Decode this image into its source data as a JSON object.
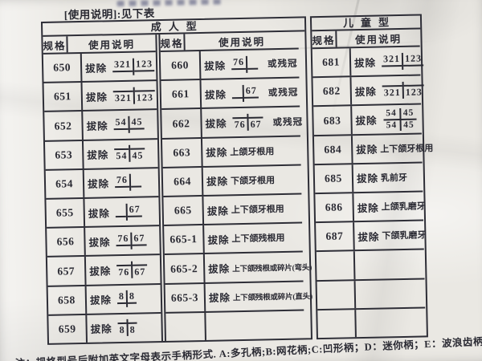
{
  "top_note": "[使用说明]:见下表",
  "bottom_note": "注：规格型号后附加英文字母表示手柄形式. A:多孔柄;B:网花柄;C:凹形柄；D：迷你柄；E：波浪齿柄",
  "colors": {
    "ink": "#2a2a33",
    "table_line": "#2e2e37",
    "paper": "#eae8e3"
  },
  "notation_legend": {
    "upper": "line below numbers = maxillary teeth",
    "lower": "line above numbers = mandibular teeth",
    "both": "numbers above and below line = both jaws"
  },
  "groups": [
    {
      "label": "成人型",
      "sections": [
        {
          "spec_header": "规格",
          "usage_header": "使用说明",
          "rows": [
            {
              "spec": "650",
              "prefix": "拔除",
              "notation": {
                "kind": "upper",
                "l": "321",
                "r": "123"
              }
            },
            {
              "spec": "651",
              "prefix": "拔除",
              "notation": {
                "kind": "lower",
                "l": "321",
                "r": "123"
              }
            },
            {
              "spec": "652",
              "prefix": "拔除",
              "notation": {
                "kind": "upper",
                "l": "54",
                "r": "45"
              }
            },
            {
              "spec": "653",
              "prefix": "拔除",
              "notation": {
                "kind": "lower",
                "l": "54",
                "r": "45"
              }
            },
            {
              "spec": "654",
              "prefix": "拔除",
              "notation": {
                "kind": "upper",
                "l": "76",
                "r": ""
              }
            },
            {
              "spec": "655",
              "prefix": "拔除",
              "notation": {
                "kind": "upper",
                "l": "",
                "r": "67"
              }
            },
            {
              "spec": "656",
              "prefix": "拔除",
              "notation": {
                "kind": "upper",
                "l": "76",
                "r": "67"
              }
            },
            {
              "spec": "657",
              "prefix": "拔除",
              "notation": {
                "kind": "lower",
                "l": "76",
                "r": "67"
              }
            },
            {
              "spec": "658",
              "prefix": "拔除",
              "notation": {
                "kind": "upper",
                "l": "8",
                "r": "8"
              }
            },
            {
              "spec": "659",
              "prefix": "拔除",
              "notation": {
                "kind": "lower",
                "l": "8",
                "r": "8"
              }
            }
          ]
        },
        {
          "spec_header": "规格",
          "usage_header": "使用说明",
          "rows": [
            {
              "spec": "660",
              "prefix": "拔除",
              "notation": {
                "kind": "upper",
                "l": "76",
                "r": ""
              },
              "suffix": "或残冠"
            },
            {
              "spec": "661",
              "prefix": "拔除",
              "notation": {
                "kind": "upper",
                "l": "",
                "r": "67"
              },
              "suffix": "或残冠"
            },
            {
              "spec": "662",
              "prefix": "拔除",
              "notation": {
                "kind": "lower",
                "l": "76",
                "r": "67"
              },
              "suffix": "或残冠"
            },
            {
              "spec": "663",
              "prefix": "拔除",
              "text": "上颌牙根用"
            },
            {
              "spec": "664",
              "prefix": "拔除",
              "text": "下颌牙根用"
            },
            {
              "spec": "665",
              "prefix": "拔除",
              "text": "上下颌牙根用"
            },
            {
              "spec": "665-1",
              "prefix": "拔除",
              "text": "上下颌残根用"
            },
            {
              "spec": "665-2",
              "prefix": "拔除",
              "text": "上下颌残根或碎片(弯头)"
            },
            {
              "spec": "665-3",
              "prefix": "拔除",
              "text": "上下颌残根或碎片(直头)"
            },
            {
              "spec": "",
              "empty": true
            }
          ]
        }
      ]
    },
    {
      "label": "儿童型",
      "sections": [
        {
          "spec_header": "规格",
          "usage_header": "使用说明",
          "rows": [
            {
              "spec": "681",
              "prefix": "拔除",
              "notation": {
                "kind": "upper",
                "l": "321",
                "r": "123"
              }
            },
            {
              "spec": "682",
              "prefix": "拔除",
              "notation": {
                "kind": "lower",
                "l": "321",
                "r": "123"
              }
            },
            {
              "spec": "683",
              "prefix": "拔除",
              "notation": {
                "kind": "both",
                "l": "54",
                "r": "45",
                "l2": "54",
                "r2": "45"
              }
            },
            {
              "spec": "684",
              "prefix": "拔除",
              "text": "上下颌牙根用"
            },
            {
              "spec": "685",
              "prefix": "拔除",
              "text": "乳前牙"
            },
            {
              "spec": "686",
              "prefix": "拔除",
              "text": "上颌乳磨牙"
            },
            {
              "spec": "687",
              "prefix": "拔除",
              "text": "下颌乳磨牙"
            },
            {
              "spec": "",
              "empty": true
            },
            {
              "spec": "",
              "empty": true
            },
            {
              "spec": "",
              "empty": true
            }
          ]
        }
      ]
    }
  ]
}
